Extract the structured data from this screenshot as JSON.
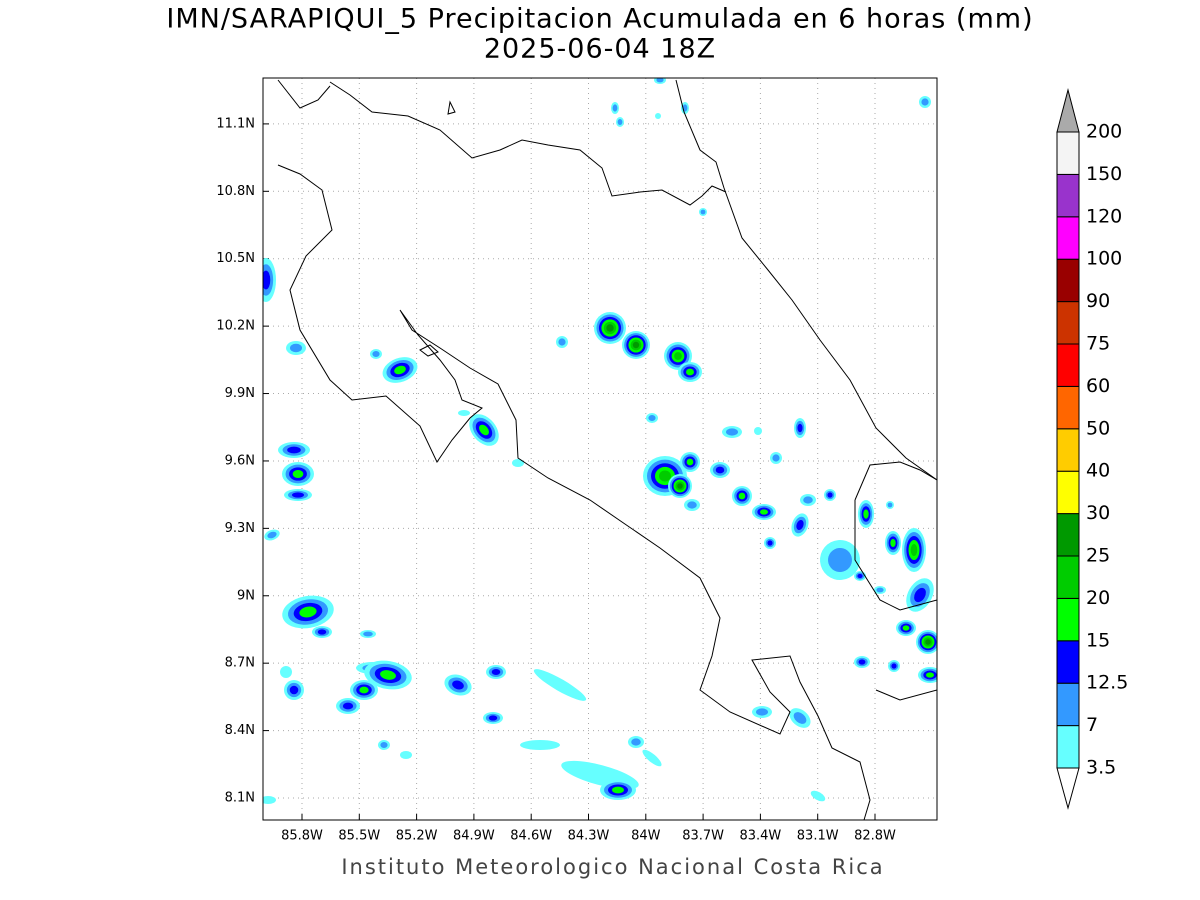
{
  "map": {
    "title": "IMN/SARAPIQUI_5 Precipitacion Acumulada en 6 horas (mm)",
    "subtitle": "2025-06-04 18Z",
    "lat_ticks": [
      {
        "value": 11.1,
        "label": "11.1N"
      },
      {
        "value": 10.8,
        "label": "10.8N"
      },
      {
        "value": 10.5,
        "label": "10.5N"
      },
      {
        "value": 10.2,
        "label": "10.2N"
      },
      {
        "value": 9.9,
        "label": "9.9N"
      },
      {
        "value": 9.6,
        "label": "9.6N"
      },
      {
        "value": 9.3,
        "label": "9.3N"
      },
      {
        "value": 9,
        "label": "9N"
      },
      {
        "value": 8.7,
        "label": "8.7N"
      },
      {
        "value": 8.4,
        "label": "8.4N"
      },
      {
        "value": 8.1,
        "label": "8.1N"
      }
    ],
    "lon_ticks": [
      {
        "value": -85.8,
        "label": "85.8W"
      },
      {
        "value": -85.5,
        "label": "85.5W"
      },
      {
        "value": -85.2,
        "label": "85.2W"
      },
      {
        "value": -84.9,
        "label": "84.9W"
      },
      {
        "value": -84.6,
        "label": "84.6W"
      },
      {
        "value": -84.3,
        "label": "84.3W"
      },
      {
        "value": -84,
        "label": "84W"
      },
      {
        "value": -83.7,
        "label": "83.7W"
      },
      {
        "value": -83.4,
        "label": "83.4W"
      },
      {
        "value": -83.1,
        "label": "83.1W"
      },
      {
        "value": -82.8,
        "label": "82.8W"
      }
    ],
    "colorbar": {
      "levels": [
        3.5,
        7,
        12.5,
        15,
        20,
        25,
        30,
        40,
        50,
        60,
        75,
        90,
        100,
        120,
        150,
        200
      ],
      "colors": [
        "#66ffff",
        "#3399ff",
        "#0000ff",
        "#00ff00",
        "#00cc00",
        "#009900",
        "#ffff00",
        "#ffcc00",
        "#ff6600",
        "#ff0000",
        "#cc3300",
        "#990000",
        "#ff00ff",
        "#9933cc",
        "#f4f4f4"
      ],
      "under_color": "#ffffff",
      "over_color": "#aaaaaa"
    },
    "footer": "Instituto Meteorologico Nacional Costa Rica"
  }
}
